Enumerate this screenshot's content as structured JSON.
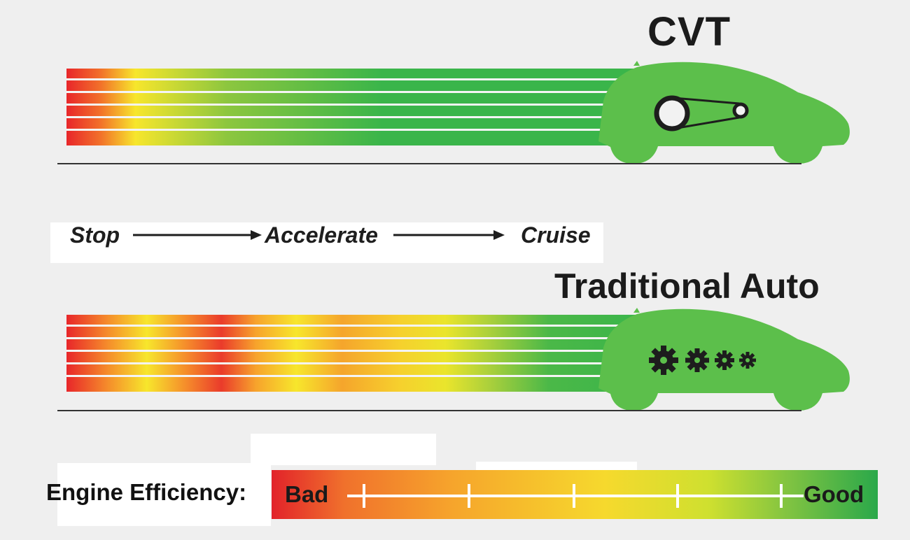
{
  "cvt": {
    "title": "CVT",
    "transmission_icon": "belt-pulley-icon"
  },
  "flow": {
    "step1": "Stop",
    "step2": "Accelerate",
    "step3": "Cruise"
  },
  "traditional": {
    "title": "Traditional Auto",
    "transmission_icon": "gears-icon"
  },
  "efficiency": {
    "label": "Engine Efficiency:",
    "low": "Bad",
    "high": "Good"
  },
  "colors": {
    "car_green": "#5cbf4b",
    "bad_red": "#e2222a",
    "mid_yellow": "#f7e62c",
    "good_green": "#2aa84a"
  }
}
